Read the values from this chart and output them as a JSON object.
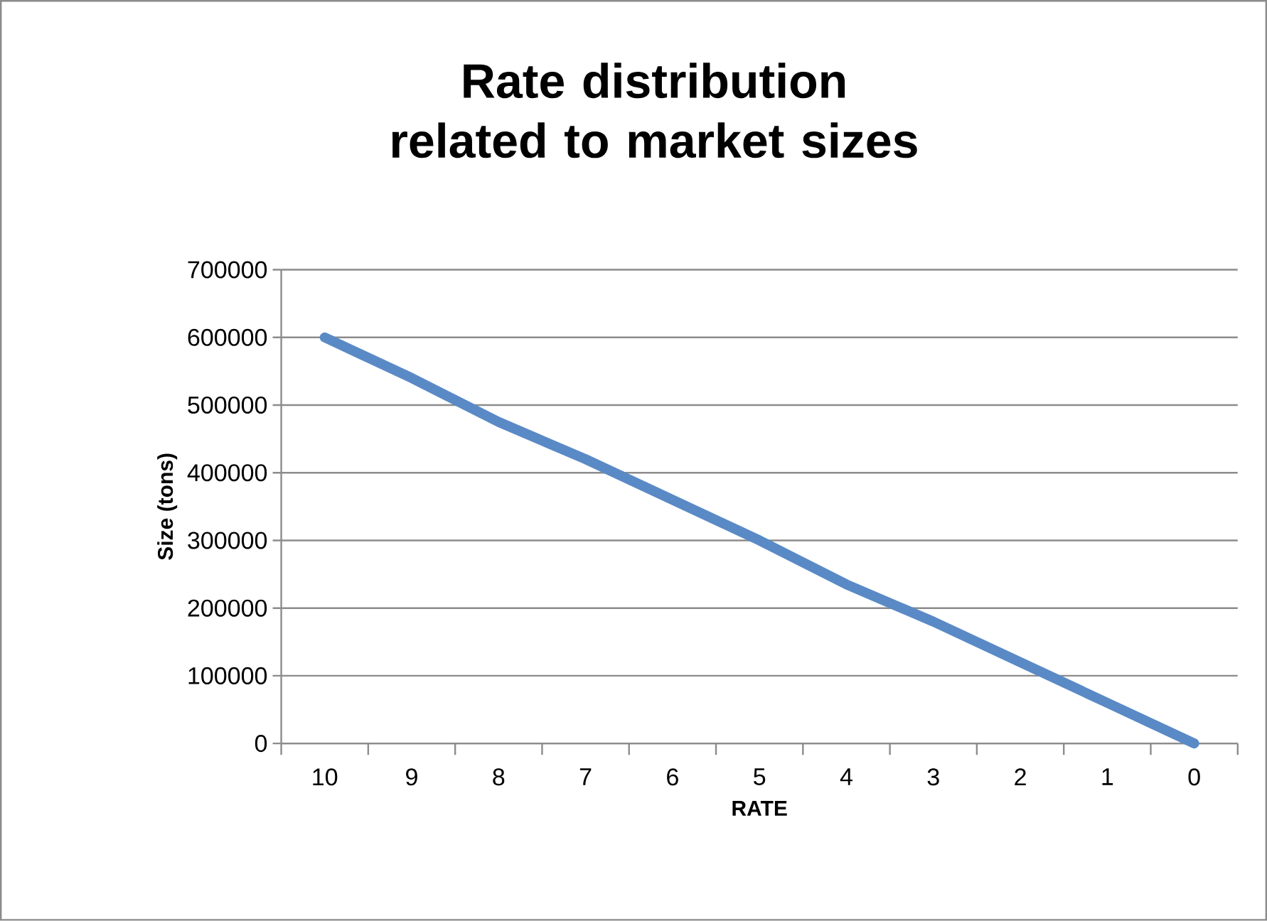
{
  "chart_data": {
    "type": "line",
    "title": "Rate distribution related to market sizes",
    "xlabel": "RATE",
    "ylabel": "Size (tons)",
    "categories": [
      "10",
      "9",
      "8",
      "7",
      "6",
      "5",
      "4",
      "3",
      "2",
      "1",
      "0"
    ],
    "series": [
      {
        "color": "#5a8ac6",
        "values": [
          600000,
          540000,
          475000,
          420000,
          360000,
          300000,
          235000,
          180000,
          120000,
          60000,
          0
        ]
      }
    ],
    "ylim": [
      0,
      700000
    ],
    "yticks": [
      0,
      100000,
      200000,
      300000,
      400000,
      500000,
      600000,
      700000
    ],
    "grid": "y",
    "marker": "none",
    "line_style": "solid"
  }
}
